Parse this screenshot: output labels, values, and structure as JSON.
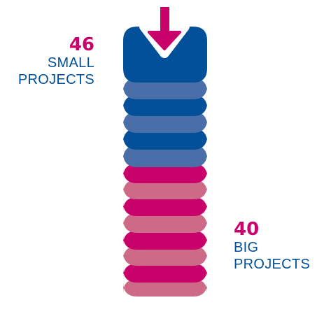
{
  "colors": {
    "small_dark": "#03509a",
    "small_light": "#4a6ea8",
    "big_dark": "#c8016b",
    "big_light": "#cc6a88",
    "arrow": "#c8016b"
  },
  "small": {
    "count": "46",
    "line1": "SMALL",
    "line2": "PROJECTS"
  },
  "big": {
    "count": "40",
    "line1": "BIG",
    "line2": "PROJECTS"
  },
  "icon": "down-arrow-icon"
}
